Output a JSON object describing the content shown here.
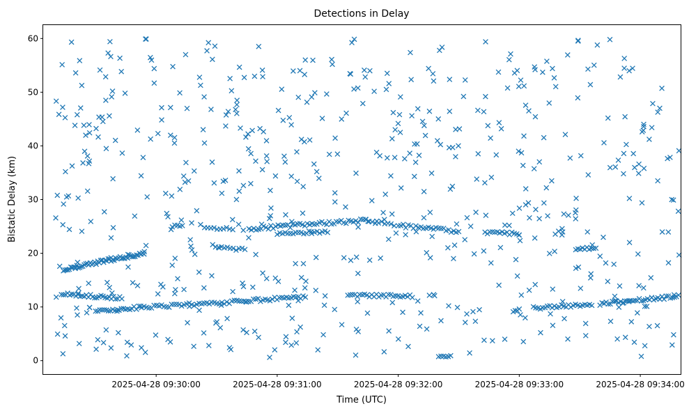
{
  "chart_data": {
    "type": "scatter",
    "title": "Detections in Delay",
    "xlabel": "Time (UTC)",
    "ylabel": "Bistatic Delay (km)",
    "x_axis_type": "time",
    "xlim": [
      "2025-04-28 09:29:04",
      "2025-04-28 09:34:20"
    ],
    "ylim": [
      -2.5,
      62.5
    ],
    "x_ticks": [
      "2025-04-28 09:30:00",
      "2025-04-28 09:31:00",
      "2025-04-28 09:32:00",
      "2025-04-28 09:33:00",
      "2025-04-28 09:34:00"
    ],
    "y_ticks": [
      0,
      10,
      20,
      30,
      40,
      50,
      60
    ],
    "marker": "x",
    "color": "#1f77b4",
    "grid": false,
    "legend": "none",
    "clusters": [
      {
        "kind": "track",
        "from": [
          "2025-04-28 09:29:13",
          12.4
        ],
        "to": [
          "2025-04-28 09:29:43",
          11.6
        ],
        "count": 30,
        "jitter": 0.3
      },
      {
        "kind": "track",
        "from": [
          "2025-04-28 09:29:14",
          17.0
        ],
        "to": [
          "2025-04-28 09:29:54",
          20.0
        ],
        "count": 55,
        "jitter": 0.3
      },
      {
        "kind": "track",
        "from": [
          "2025-04-28 09:29:30",
          9.2
        ],
        "to": [
          "2025-04-28 09:29:48",
          9.6
        ],
        "count": 18,
        "jitter": 0.25
      },
      {
        "kind": "track",
        "from": [
          "2025-04-28 09:29:49",
          9.8
        ],
        "to": [
          "2025-04-28 09:30:40",
          11.0
        ],
        "count": 42,
        "jitter": 0.3
      },
      {
        "kind": "track",
        "from": [
          "2025-04-28 09:30:40",
          11.0
        ],
        "to": [
          "2025-04-28 09:31:14",
          11.9
        ],
        "count": 30,
        "jitter": 0.3
      },
      {
        "kind": "track",
        "from": [
          "2025-04-28 09:30:08",
          25.1
        ],
        "to": [
          "2025-04-28 09:30:13",
          25.1
        ],
        "count": 5,
        "jitter": 0.2
      },
      {
        "kind": "track",
        "from": [
          "2025-04-28 09:30:24",
          24.8
        ],
        "to": [
          "2025-04-28 09:30:38",
          24.4
        ],
        "count": 10,
        "jitter": 0.3
      },
      {
        "kind": "track",
        "from": [
          "2025-04-28 09:30:28",
          21.5
        ],
        "to": [
          "2025-04-28 09:30:44",
          20.6
        ],
        "count": 12,
        "jitter": 0.3
      },
      {
        "kind": "track",
        "from": [
          "2025-04-28 09:30:46",
          24.5
        ],
        "to": [
          "2025-04-28 09:31:45",
          26.2
        ],
        "count": 50,
        "jitter": 0.35
      },
      {
        "kind": "track",
        "from": [
          "2025-04-28 09:31:00",
          23.6
        ],
        "to": [
          "2025-04-28 09:31:25",
          24.0
        ],
        "count": 20,
        "jitter": 0.25
      },
      {
        "kind": "track",
        "from": [
          "2025-04-28 09:31:44",
          26.1
        ],
        "to": [
          "2025-04-28 09:31:58",
          25.4
        ],
        "count": 10,
        "jitter": 0.3
      },
      {
        "kind": "track",
        "from": [
          "2025-04-28 09:32:00",
          25.2
        ],
        "to": [
          "2025-04-28 09:32:30",
          24.1
        ],
        "count": 25,
        "jitter": 0.35
      },
      {
        "kind": "track",
        "from": [
          "2025-04-28 09:31:35",
          12.2
        ],
        "to": [
          "2025-04-28 09:32:07",
          12.0
        ],
        "count": 28,
        "jitter": 0.25
      },
      {
        "kind": "track",
        "from": [
          "2025-04-28 09:32:43",
          23.9
        ],
        "to": [
          "2025-04-28 09:33:00",
          23.6
        ],
        "count": 15,
        "jitter": 0.25
      },
      {
        "kind": "track",
        "from": [
          "2025-04-28 09:32:20",
          0.8
        ],
        "to": [
          "2025-04-28 09:32:26",
          0.8
        ],
        "count": 6,
        "jitter": 0.15
      },
      {
        "kind": "track",
        "from": [
          "2025-04-28 09:32:57",
          9.3
        ],
        "to": [
          "2025-04-28 09:33:00",
          9.5
        ],
        "count": 4,
        "jitter": 0.2
      },
      {
        "kind": "track",
        "from": [
          "2025-04-28 09:33:07",
          9.8
        ],
        "to": [
          "2025-04-28 09:33:36",
          10.5
        ],
        "count": 26,
        "jitter": 0.3
      },
      {
        "kind": "track",
        "from": [
          "2025-04-28 09:33:40",
          10.6
        ],
        "to": [
          "2025-04-28 09:34:20",
          12.0
        ],
        "count": 40,
        "jitter": 0.3
      },
      {
        "kind": "track",
        "from": [
          "2025-04-28 09:33:28",
          20.8
        ],
        "to": [
          "2025-04-28 09:33:38",
          21.0
        ],
        "count": 10,
        "jitter": 0.25
      },
      {
        "kind": "track",
        "from": [
          "2025-04-28 09:29:11",
          30.8
        ],
        "to": [
          "2025-04-28 09:29:11",
          30.8
        ],
        "count": 1,
        "jitter": 0
      },
      {
        "kind": "noise",
        "from": [
          "2025-04-28 09:29:10",
          0.5
        ],
        "to": [
          "2025-04-28 09:34:20",
          60.0
        ],
        "count": 620
      }
    ]
  }
}
